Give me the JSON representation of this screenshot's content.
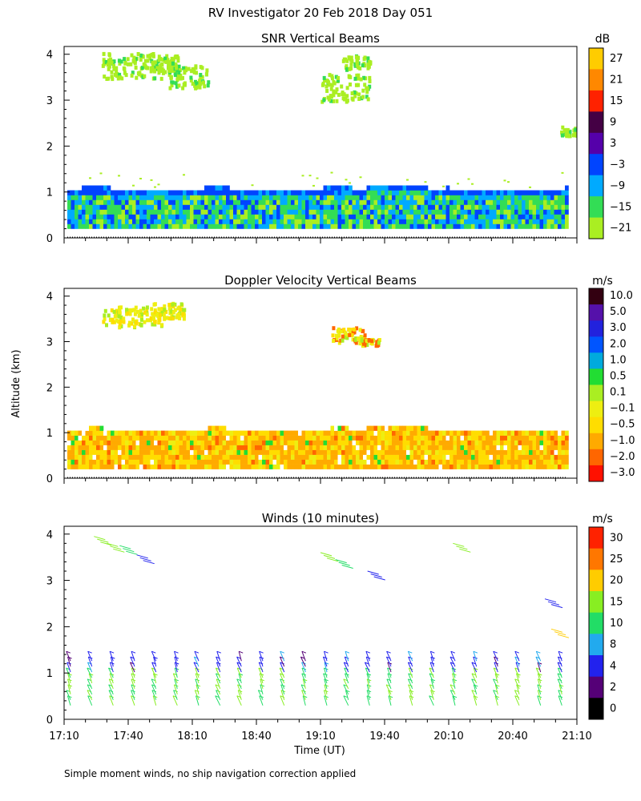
{
  "figure": {
    "title": "RV Investigator  20 Feb 2018 Day 051",
    "ylabel": "Altitude (km)",
    "xlabel": "Time (UT)",
    "footnote": "Simple moment winds, no ship navigation correction applied"
  },
  "chart_data": [
    {
      "type": "heatmap",
      "title": "SNR Vertical Beams",
      "units": "dB",
      "x_ticks": [
        "17:10",
        "17:40",
        "18:10",
        "18:40",
        "19:10",
        "19:40",
        "20:10",
        "20:40",
        "21:10"
      ],
      "xlim_minutes_after_1710": [
        0,
        240
      ],
      "y_ticks": [
        "0",
        "1",
        "2",
        "3",
        "4"
      ],
      "ylim_km": [
        0,
        4.1
      ],
      "colorbar": {
        "labels": [
          "27",
          "21",
          "15",
          "9",
          "3",
          "−3",
          "−9",
          "−15",
          "−21"
        ],
        "colors": [
          "#ffcc00",
          "#ff8800",
          "#ff2200",
          "#440044",
          "#5500aa",
          "#0044ff",
          "#00aaff",
          "#33dd55",
          "#aaee22"
        ]
      },
      "features": {
        "boundary_layer_top_km": 1.0,
        "noise_floor_km": 0.2,
        "upper_cloud_patches": "near 3.5–4 km around 17:40–18:20, 3–3.8 km around 19:10–19:40, 2.3 km around 20:50"
      }
    },
    {
      "type": "heatmap",
      "title": "Doppler Velocity Vertical Beams",
      "units": "m/s",
      "x_ticks": [
        "17:10",
        "17:40",
        "18:10",
        "18:40",
        "19:10",
        "19:40",
        "20:10",
        "20:40",
        "21:10"
      ],
      "xlim_minutes_after_1710": [
        0,
        240
      ],
      "y_ticks": [
        "0",
        "1",
        "2",
        "3",
        "4"
      ],
      "ylim_km": [
        0,
        4.1
      ],
      "colorbar": {
        "labels": [
          "10.0",
          "5.0",
          "3.0",
          "2.0",
          "1.0",
          "0.5",
          "0.1",
          "−0.1",
          "−0.5",
          "−1.0",
          "−2.0",
          "−3.0"
        ],
        "colors": [
          "#330011",
          "#5511aa",
          "#2222dd",
          "#0055ff",
          "#00aadd",
          "#22dd33",
          "#aaee22",
          "#eeee11",
          "#ffdd00",
          "#ffaa00",
          "#ff6600",
          "#ff1100"
        ]
      },
      "features": {
        "boundary_layer_top_km": 1.0,
        "dominant_velocity_range": "-0.1 to -1.0 m/s"
      }
    },
    {
      "type": "wind_barbs",
      "title": "Winds (10 minutes)",
      "units": "m/s",
      "x_ticks": [
        "17:10",
        "17:40",
        "18:10",
        "18:40",
        "19:10",
        "19:40",
        "20:10",
        "20:40",
        "21:10"
      ],
      "xlim_minutes_after_1710": [
        0,
        240
      ],
      "y_ticks": [
        "0",
        "1",
        "2",
        "3",
        "4"
      ],
      "ylim_km": [
        0,
        4.1
      ],
      "averaging": "10 minutes",
      "colorbar": {
        "labels": [
          "30",
          "25",
          "20",
          "15",
          "10",
          "8",
          "4",
          "2",
          "0"
        ],
        "colors": [
          "#ff2200",
          "#ff7700",
          "#ffcc00",
          "#88ee22",
          "#22dd66",
          "#22aaee",
          "#2222ee",
          "#550077",
          "#000000"
        ]
      },
      "profile_times": [
        "17:10",
        "17:20",
        "17:30",
        "17:40",
        "17:50",
        "18:00",
        "18:10",
        "18:20",
        "18:30",
        "18:40",
        "18:50",
        "19:00",
        "19:10",
        "19:20",
        "19:30",
        "19:40",
        "19:50",
        "20:00",
        "20:10",
        "20:20",
        "20:30",
        "20:40",
        "20:50",
        "21:00"
      ],
      "features": {
        "boundary_layer_winds": "10–20 m/s, 0.2–1.3 km",
        "upper_level_winds": "isolated barbs near 3.4–4 km"
      }
    }
  ]
}
